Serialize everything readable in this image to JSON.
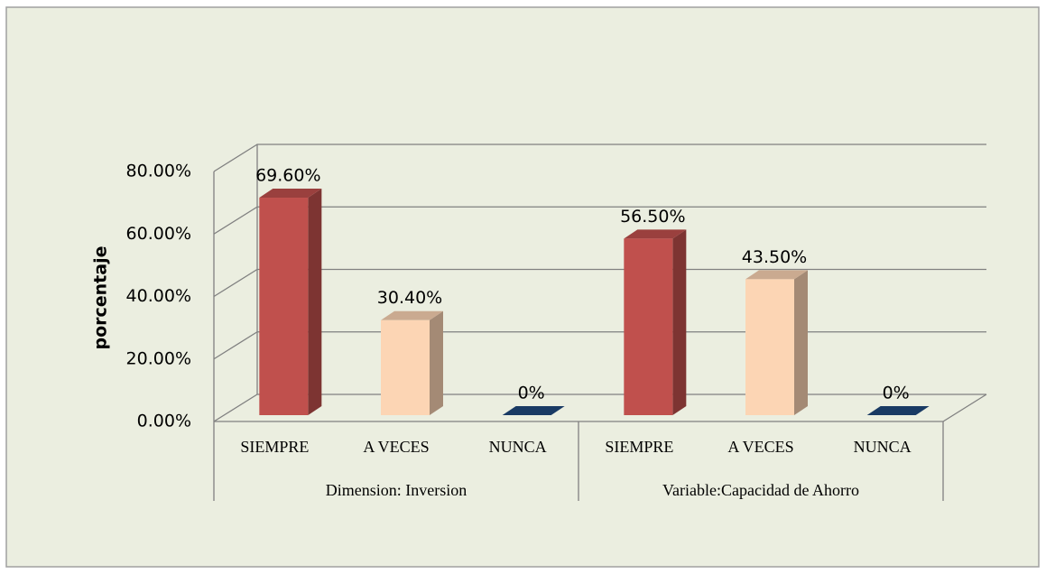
{
  "chart_data": {
    "type": "bar3d",
    "ylabel": "porcentaje",
    "ylim": [
      0,
      80
    ],
    "yticks": [
      {
        "value": 0,
        "label": "0.00%"
      },
      {
        "value": 20,
        "label": "20.00%"
      },
      {
        "value": 40,
        "label": "40.00%"
      },
      {
        "value": 60,
        "label": "60.00%"
      },
      {
        "value": 80,
        "label": "80.00%"
      }
    ],
    "grid": true,
    "colors": [
      "#c0504d",
      "#fcd5b4",
      "#1f497d"
    ],
    "groups": [
      {
        "name": "Dimension: Inversion",
        "categories": [
          "SIEMPRE",
          "A VECES",
          "NUNCA"
        ],
        "values": [
          69.6,
          30.4,
          0
        ],
        "value_labels": [
          "69.60%",
          "30.40%",
          "0%"
        ]
      },
      {
        "name": "Variable:Capacidad de Ahorro",
        "categories": [
          "SIEMPRE",
          "A VECES",
          "NUNCA"
        ],
        "values": [
          56.5,
          43.5,
          0
        ],
        "value_labels": [
          "56.50%",
          "43.50%",
          "0%"
        ]
      }
    ]
  }
}
